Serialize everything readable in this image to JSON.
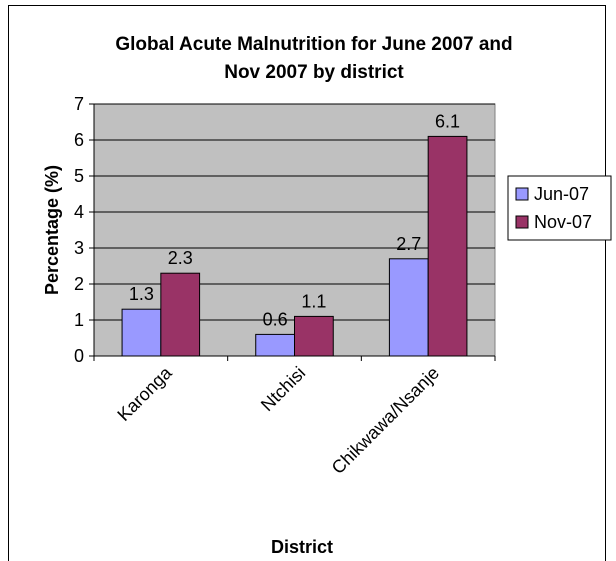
{
  "chart_data": {
    "type": "bar",
    "title_lines": [
      "Global Acute Malnutrition for June 2007 and",
      "Nov 2007 by district"
    ],
    "xlabel": "District",
    "ylabel": "Percentage (%)",
    "categories": [
      "Karonga",
      "Ntchisi",
      "Chikwawa/Nsanje"
    ],
    "series": [
      {
        "name": "Jun-07",
        "values": [
          1.3,
          0.6,
          2.7
        ],
        "labels": [
          "1.3",
          "0.6",
          "2.7"
        ],
        "color": "#9999ff"
      },
      {
        "name": "Nov-07",
        "values": [
          2.3,
          1.1,
          6.1
        ],
        "labels": [
          "2.3",
          "1.1",
          "6.1"
        ],
        "color": "#993366"
      }
    ],
    "ylim": [
      0,
      7
    ],
    "yticks": [
      "0",
      "1",
      "2",
      "3",
      "4",
      "5",
      "6",
      "7"
    ],
    "grid": true,
    "plot_background": "#c0c0c0",
    "legend_position": "right"
  }
}
